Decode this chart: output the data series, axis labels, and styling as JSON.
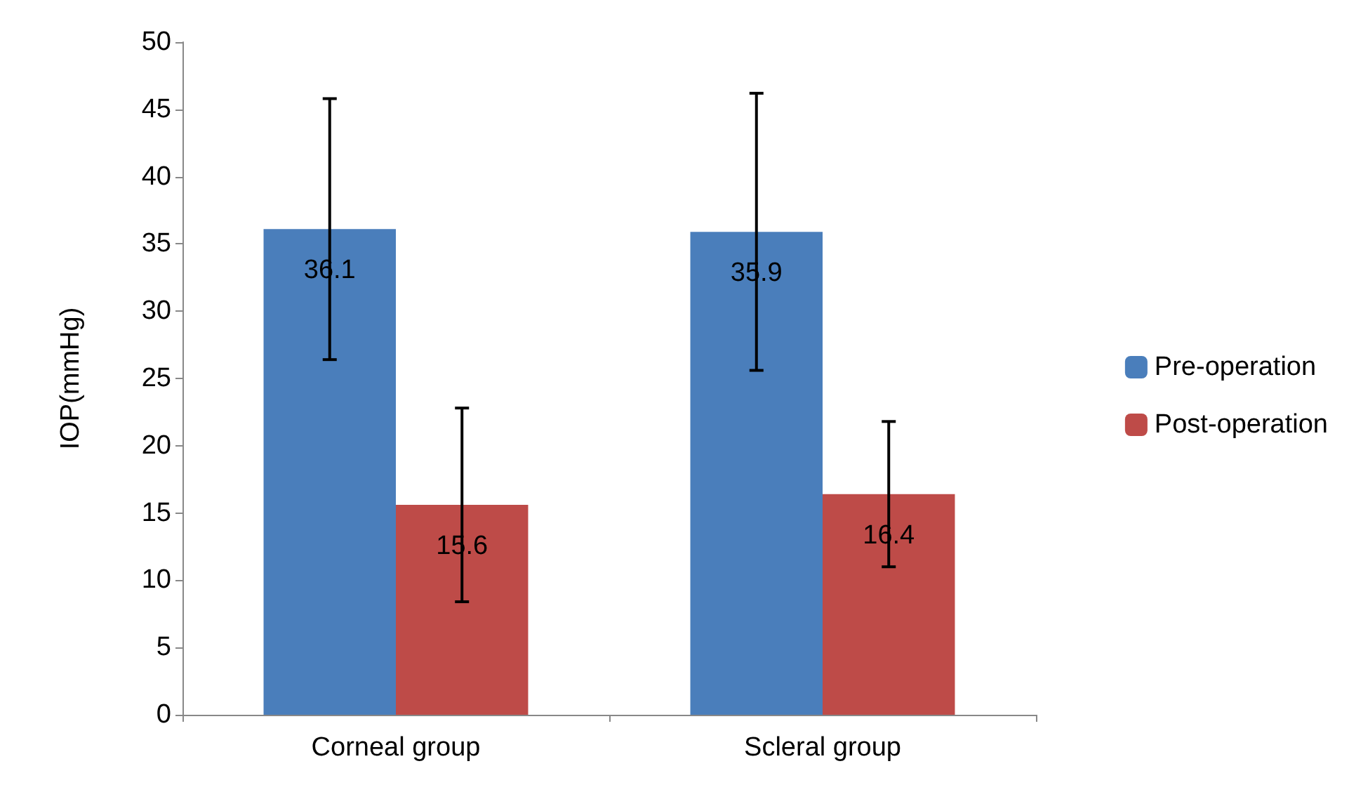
{
  "chart_data": {
    "type": "bar",
    "ylabel": "IOP(mmHg)",
    "categories": [
      "Corneal group",
      "Scleral group"
    ],
    "series": [
      {
        "name": "Pre-operation",
        "color": "#4a7ebb",
        "values": [
          36.1,
          35.9
        ],
        "errors": [
          9.7,
          10.3
        ]
      },
      {
        "name": "Post-operation",
        "color": "#be4b48",
        "values": [
          15.6,
          16.4
        ],
        "errors": [
          7.2,
          5.4
        ]
      }
    ],
    "ylim": [
      0,
      50
    ],
    "yticks": [
      0,
      5,
      10,
      15,
      20,
      25,
      30,
      35,
      40,
      45,
      50
    ],
    "grid": false,
    "legend": "right",
    "data_labels": true
  }
}
